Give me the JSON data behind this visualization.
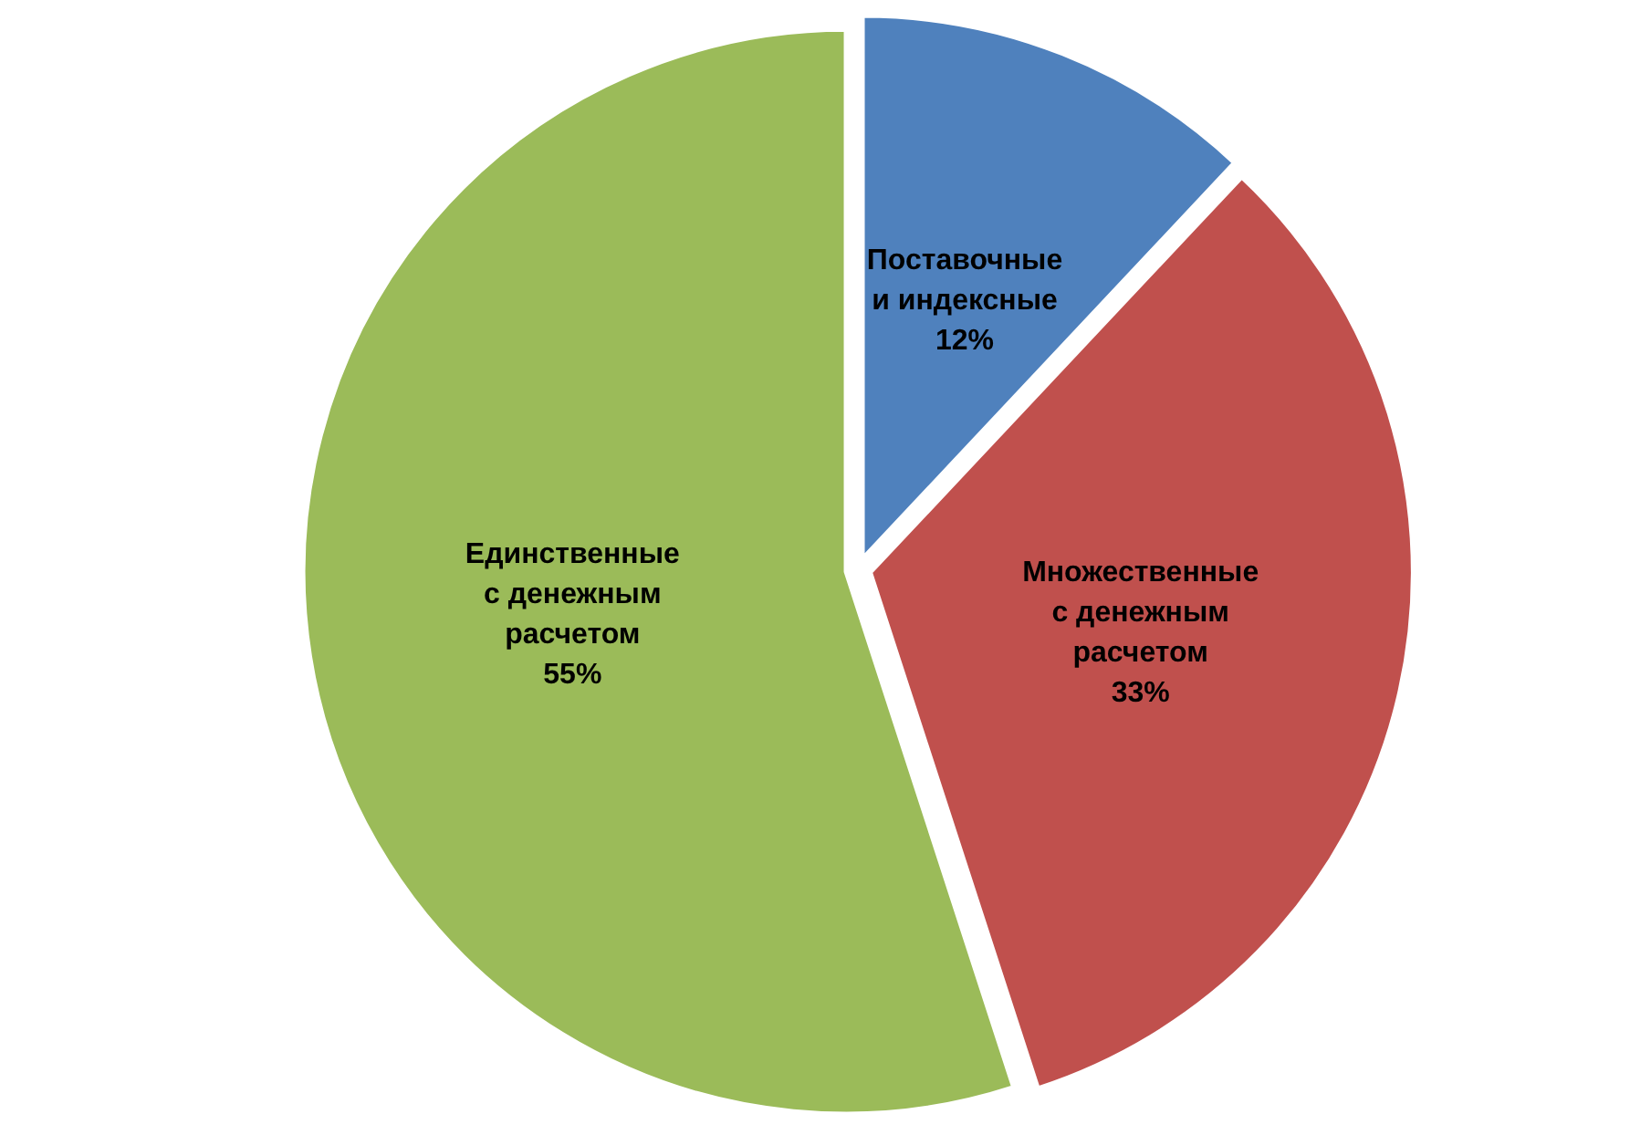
{
  "chart_data": {
    "type": "pie",
    "categories": [
      "Поставочные и индексные",
      "Множественные с денежным расчетом",
      "Единственные с денежным расчетом"
    ],
    "values": [
      12,
      33,
      55
    ],
    "colors": [
      "#4f81bd",
      "#c0504d",
      "#9bbb59"
    ],
    "value_labels": [
      "12%",
      "33%",
      "55%"
    ]
  }
}
